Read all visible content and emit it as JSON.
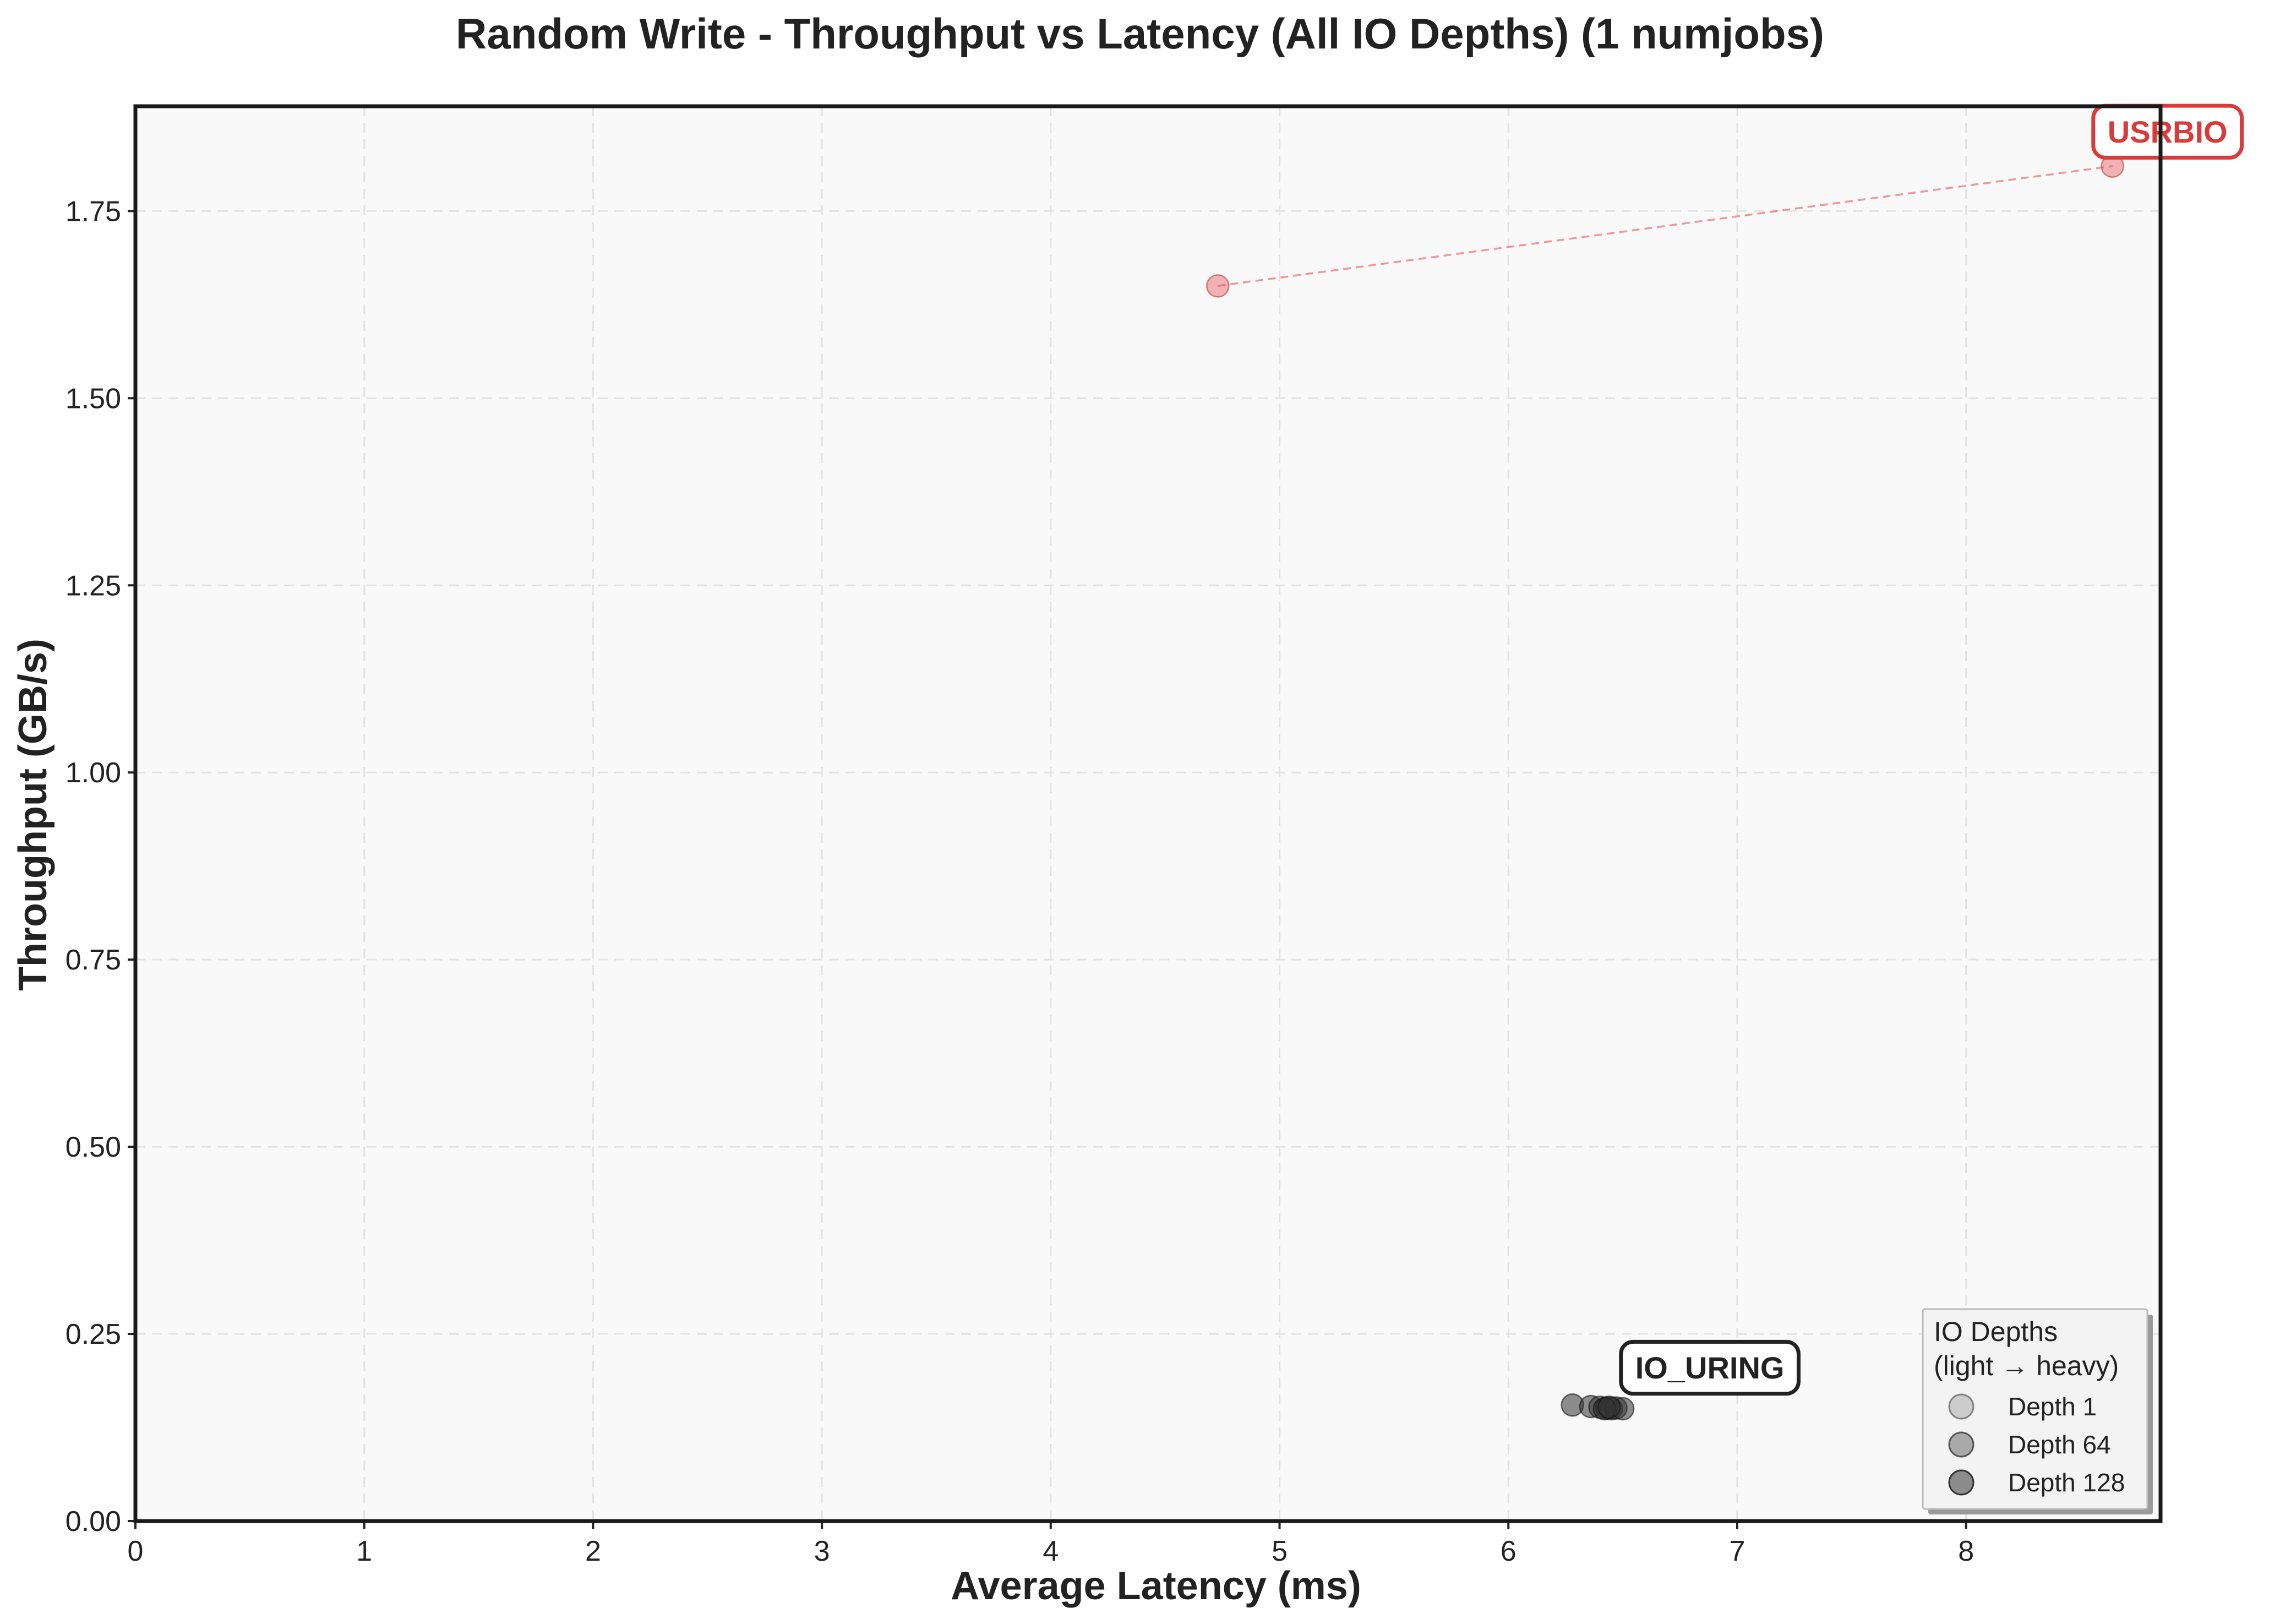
{
  "chart_data": {
    "type": "scatter",
    "title": "Random Write - Throughput vs Latency (All IO Depths) (1 numjobs)",
    "xlabel": "Average Latency (ms)",
    "ylabel": "Throughput (GB/s)",
    "xlim": [
      0,
      8.85
    ],
    "ylim": [
      0,
      1.89
    ],
    "xticks": [
      0,
      1,
      2,
      3,
      4,
      5,
      6,
      7,
      8
    ],
    "yticks": [
      0.0,
      0.25,
      0.5,
      0.75,
      1.0,
      1.25,
      1.5,
      1.75
    ],
    "ytick_labels": [
      "0.00",
      "0.25",
      "0.50",
      "0.75",
      "1.00",
      "1.25",
      "1.50",
      "1.75"
    ],
    "grid": true,
    "series": [
      {
        "name": "USRBIO",
        "color": "#e8474f",
        "label_color": "#d93b3b",
        "connected": true,
        "points": [
          {
            "x": 4.73,
            "y": 1.65
          },
          {
            "x": 8.64,
            "y": 1.81
          }
        ]
      },
      {
        "name": "IO_URING",
        "color": "#333333",
        "label_color": "#222222",
        "connected": false,
        "points": [
          {
            "x": 6.28,
            "y": 0.155
          },
          {
            "x": 6.36,
            "y": 0.153
          },
          {
            "x": 6.4,
            "y": 0.152
          },
          {
            "x": 6.43,
            "y": 0.151
          },
          {
            "x": 6.45,
            "y": 0.15
          },
          {
            "x": 6.47,
            "y": 0.151
          },
          {
            "x": 6.5,
            "y": 0.15
          },
          {
            "x": 6.42,
            "y": 0.15
          },
          {
            "x": 6.44,
            "y": 0.152
          }
        ]
      }
    ],
    "legend": {
      "title_lines": [
        "IO Depths",
        "(light → heavy)"
      ],
      "placement": "lower-right",
      "entries": [
        {
          "label": "Depth 1",
          "fill": "#cccccc"
        },
        {
          "label": "Depth 64",
          "fill": "#a9a9a9"
        },
        {
          "label": "Depth 128",
          "fill": "#8c8c8c"
        }
      ]
    }
  }
}
